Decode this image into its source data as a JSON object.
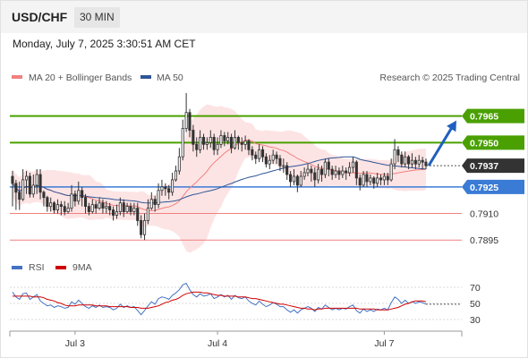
{
  "header": {
    "pair": "USD/CHF",
    "timeframe": "30 MIN",
    "datetime": "Monday, July 7, 2025 3:30:51 AM CET"
  },
  "legend": {
    "ma20_label": "MA 20 + Bollinger Bands",
    "ma50_label": "MA 50",
    "credit": "Research © 2025 Trading Central",
    "ma20_color": "#f08080",
    "ma50_color": "#2f5597"
  },
  "rsi_legend": {
    "rsi_label": "RSI",
    "ma_label": "9MA",
    "rsi_color": "#4472c4",
    "ma_color": "#d00000"
  },
  "colors": {
    "resistance": "#4aa000",
    "pivot": "#3a7bd5",
    "support": "#f08080",
    "current": "#333333",
    "band_fill": "#fde4e4",
    "candle": "#333333",
    "arrow": "#1f5fbf"
  },
  "chart_data": [
    {
      "type": "candlestick",
      "ylim": [
        0.7885,
        0.798
      ],
      "x_ticks": [
        "Jul 3",
        "Jul 4",
        "Jul 7"
      ],
      "levels": [
        {
          "label": "0.7965",
          "value": 0.7965,
          "kind": "resistance"
        },
        {
          "label": "0.7950",
          "value": 0.795,
          "kind": "resistance"
        },
        {
          "label": "0.7937",
          "value": 0.7937,
          "kind": "current"
        },
        {
          "label": "0.7925",
          "value": 0.7925,
          "kind": "pivot"
        },
        {
          "label": "0.7910",
          "value": 0.791,
          "kind": "support"
        },
        {
          "label": "0.7895",
          "value": 0.7895,
          "kind": "support"
        }
      ],
      "close": [
        0.7927,
        0.7922,
        0.7918,
        0.7929,
        0.7931,
        0.7921,
        0.7926,
        0.7932,
        0.7922,
        0.7919,
        0.7914,
        0.7916,
        0.7912,
        0.7915,
        0.7914,
        0.7911,
        0.7913,
        0.7921,
        0.7917,
        0.7923,
        0.7919,
        0.7914,
        0.7911,
        0.7915,
        0.7913,
        0.7916,
        0.7913,
        0.7914,
        0.7912,
        0.7909,
        0.7911,
        0.7916,
        0.7911,
        0.7914,
        0.7911,
        0.7913,
        0.7906,
        0.7898,
        0.7906,
        0.7913,
        0.7918,
        0.7915,
        0.7923,
        0.7925,
        0.7924,
        0.7922,
        0.7929,
        0.7934,
        0.7942,
        0.7958,
        0.7967,
        0.7957,
        0.7949,
        0.7946,
        0.7953,
        0.7949,
        0.795,
        0.7953,
        0.7946,
        0.7949,
        0.7954,
        0.7951,
        0.7953,
        0.7947,
        0.7953,
        0.795,
        0.7949,
        0.7951,
        0.7946,
        0.7943,
        0.7941,
        0.7946,
        0.7942,
        0.7938,
        0.794,
        0.7943,
        0.7941,
        0.7937,
        0.7937,
        0.7932,
        0.7928,
        0.7931,
        0.7926,
        0.7931,
        0.7933,
        0.7935,
        0.7933,
        0.7929,
        0.7935,
        0.7932,
        0.7939,
        0.7935,
        0.7932,
        0.7934,
        0.7932,
        0.7934,
        0.7933,
        0.7936,
        0.7939,
        0.793,
        0.7926,
        0.7932,
        0.7928,
        0.793,
        0.7927,
        0.793,
        0.7929,
        0.7931,
        0.7929,
        0.7938,
        0.7946,
        0.7943,
        0.7938,
        0.7942,
        0.7938,
        0.794,
        0.7938,
        0.794,
        0.7939,
        0.7937
      ],
      "high": [
        0.7934,
        0.7929,
        0.7928,
        0.7935,
        0.7934,
        0.7933,
        0.7932,
        0.7935,
        0.7935,
        0.7923,
        0.792,
        0.7919,
        0.7917,
        0.7918,
        0.7917,
        0.7917,
        0.7916,
        0.7926,
        0.7923,
        0.7928,
        0.7925,
        0.7921,
        0.7916,
        0.7918,
        0.7917,
        0.7919,
        0.7918,
        0.7917,
        0.7916,
        0.7914,
        0.7915,
        0.7919,
        0.7918,
        0.7916,
        0.7916,
        0.7916,
        0.7916,
        0.7909,
        0.791,
        0.7918,
        0.7922,
        0.792,
        0.7927,
        0.7929,
        0.7927,
        0.7926,
        0.7933,
        0.7937,
        0.7947,
        0.7963,
        0.7978,
        0.7969,
        0.796,
        0.7953,
        0.7957,
        0.7955,
        0.7953,
        0.7957,
        0.7955,
        0.7953,
        0.7957,
        0.7956,
        0.7956,
        0.7955,
        0.7957,
        0.7954,
        0.7953,
        0.7954,
        0.7952,
        0.7948,
        0.7945,
        0.7949,
        0.7948,
        0.7944,
        0.7943,
        0.7946,
        0.7945,
        0.7943,
        0.7941,
        0.7939,
        0.7934,
        0.7935,
        0.7932,
        0.7934,
        0.7936,
        0.7938,
        0.7937,
        0.7936,
        0.7938,
        0.7937,
        0.7941,
        0.7941,
        0.7937,
        0.7937,
        0.7936,
        0.7937,
        0.7936,
        0.7939,
        0.7942,
        0.794,
        0.7932,
        0.7934,
        0.7934,
        0.7932,
        0.7931,
        0.7933,
        0.7932,
        0.7933,
        0.7933,
        0.7941,
        0.7952,
        0.7948,
        0.7945,
        0.7945,
        0.7943,
        0.7944,
        0.7942,
        0.7943,
        0.7942,
        0.7941
      ],
      "low": [
        0.7914,
        0.7912,
        0.7912,
        0.7917,
        0.7921,
        0.7919,
        0.7919,
        0.7921,
        0.7918,
        0.7914,
        0.7911,
        0.7911,
        0.791,
        0.791,
        0.7909,
        0.7909,
        0.791,
        0.7911,
        0.7914,
        0.7915,
        0.7914,
        0.791,
        0.7909,
        0.791,
        0.791,
        0.7912,
        0.791,
        0.791,
        0.7909,
        0.7906,
        0.7907,
        0.7909,
        0.7908,
        0.791,
        0.7909,
        0.7909,
        0.7903,
        0.7896,
        0.7895,
        0.7904,
        0.7912,
        0.7911,
        0.7913,
        0.792,
        0.792,
        0.7918,
        0.792,
        0.7928,
        0.7932,
        0.794,
        0.7956,
        0.7953,
        0.7945,
        0.7942,
        0.7944,
        0.7946,
        0.7946,
        0.7947,
        0.7943,
        0.7943,
        0.7947,
        0.7948,
        0.7949,
        0.7944,
        0.7946,
        0.7946,
        0.7945,
        0.7946,
        0.7943,
        0.794,
        0.7938,
        0.7939,
        0.7939,
        0.7936,
        0.7935,
        0.7938,
        0.7938,
        0.7934,
        0.7933,
        0.7929,
        0.7925,
        0.7926,
        0.7922,
        0.7925,
        0.7929,
        0.7931,
        0.7928,
        0.7925,
        0.7927,
        0.7928,
        0.793,
        0.7931,
        0.7929,
        0.793,
        0.7929,
        0.793,
        0.7929,
        0.7931,
        0.7933,
        0.7926,
        0.7923,
        0.7925,
        0.7925,
        0.7926,
        0.7924,
        0.7925,
        0.7926,
        0.7926,
        0.7926,
        0.7928,
        0.7935,
        0.7939,
        0.7936,
        0.7936,
        0.7935,
        0.7936,
        0.7935,
        0.7936,
        0.7935,
        0.7935
      ]
    },
    {
      "type": "line",
      "ylim": [
        20,
        80
      ],
      "y_ticks": [
        70,
        50,
        30
      ],
      "series": [
        {
          "name": "RSI",
          "values": [
            64,
            58,
            55,
            62,
            63,
            55,
            58,
            61,
            53,
            50,
            47,
            48,
            45,
            47,
            46,
            44,
            45,
            52,
            49,
            54,
            50,
            46,
            44,
            47,
            45,
            48,
            45,
            46,
            45,
            42,
            44,
            49,
            45,
            47,
            45,
            46,
            41,
            36,
            41,
            47,
            52,
            49,
            56,
            58,
            57,
            55,
            60,
            63,
            67,
            73,
            75,
            67,
            61,
            58,
            62,
            59,
            60,
            62,
            56,
            58,
            61,
            58,
            60,
            55,
            60,
            57,
            56,
            58,
            53,
            50,
            48,
            53,
            49,
            46,
            48,
            51,
            49,
            46,
            46,
            42,
            39,
            42,
            38,
            42,
            44,
            46,
            44,
            40,
            45,
            43,
            48,
            45,
            42,
            44,
            42,
            44,
            43,
            46,
            48,
            41,
            38,
            43,
            40,
            42,
            40,
            43,
            42,
            44,
            42,
            51,
            58,
            55,
            50,
            54,
            50,
            52,
            50,
            52,
            51,
            49
          ]
        },
        {
          "name": "9MA",
          "values": [
            59,
            59,
            59,
            59,
            59,
            59,
            58,
            58,
            58,
            57,
            55,
            54,
            53,
            51,
            50,
            48,
            47,
            47,
            47,
            48,
            48,
            48,
            48,
            48,
            47,
            47,
            47,
            47,
            46,
            46,
            46,
            46,
            46,
            46,
            45,
            45,
            45,
            44,
            44,
            44,
            45,
            46,
            47,
            49,
            51,
            52,
            54,
            55,
            57,
            60,
            62,
            63,
            64,
            64,
            64,
            63,
            63,
            62,
            61,
            60,
            60,
            59,
            59,
            59,
            59,
            58,
            58,
            58,
            57,
            56,
            56,
            55,
            54,
            53,
            52,
            51,
            50,
            49,
            49,
            48,
            47,
            46,
            45,
            44,
            44,
            43,
            43,
            42,
            43,
            43,
            44,
            44,
            44,
            44,
            44,
            44,
            44,
            44,
            44,
            44,
            43,
            43,
            43,
            43,
            43,
            42,
            42,
            42,
            42,
            43,
            44,
            45,
            47,
            49,
            50,
            52,
            53,
            53,
            53,
            52
          ]
        }
      ]
    }
  ]
}
